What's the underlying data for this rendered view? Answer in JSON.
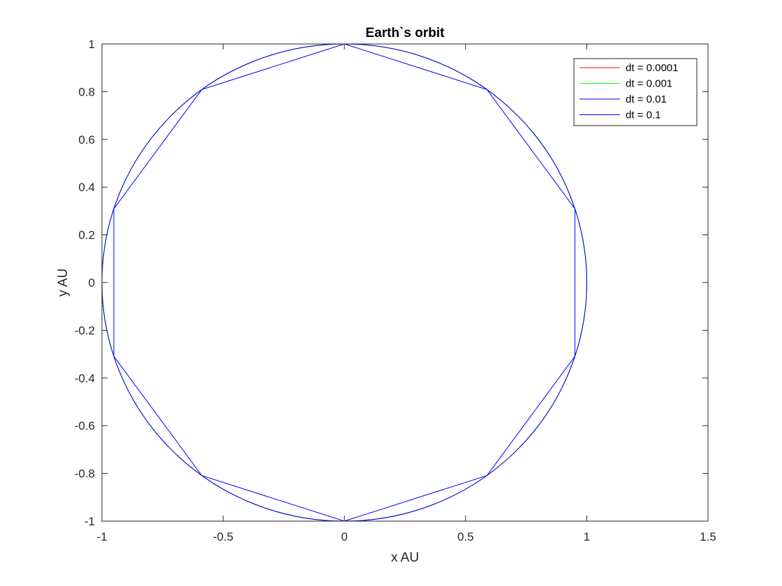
{
  "chart_data": {
    "type": "line",
    "title": "Earth`s orbit",
    "xlabel": "x AU",
    "ylabel": "y AU",
    "xlim": [
      -1,
      1.5
    ],
    "ylim": [
      -1,
      1
    ],
    "xticks": [
      -1,
      -0.5,
      0,
      0.5,
      1,
      1.5
    ],
    "xtick_labels": [
      "-1",
      "-0.5",
      "0",
      "0.5",
      "1",
      "1.5"
    ],
    "yticks": [
      -1,
      -0.8,
      -0.6,
      -0.4,
      -0.2,
      0,
      0.2,
      0.4,
      0.6,
      0.8,
      1
    ],
    "ytick_labels": [
      "-1",
      "-0.8",
      "-0.6",
      "-0.4",
      "-0.2",
      "0",
      "0.2",
      "0.4",
      "0.6",
      "0.8",
      "1"
    ],
    "grid": false,
    "legend_position": "top-right",
    "series": [
      {
        "name": "dt = 0.0001",
        "color": "#ff0000",
        "kind": "circle",
        "center": [
          0,
          0
        ],
        "radius": 1
      },
      {
        "name": "dt = 0.001",
        "color": "#00ff00",
        "kind": "circle",
        "center": [
          0,
          0
        ],
        "radius": 1
      },
      {
        "name": "dt = 0.01",
        "color": "#0000ff",
        "kind": "circle",
        "center": [
          0,
          0
        ],
        "radius": 1
      },
      {
        "name": "dt = 0.1",
        "color": "#0000ff",
        "kind": "polyline",
        "x": [
          0,
          0.588,
          0.951,
          0.951,
          0.588,
          0,
          -0.588,
          -0.951,
          -0.951,
          -0.588,
          0
        ],
        "y": [
          1,
          0.809,
          0.309,
          -0.309,
          -0.809,
          -1,
          -0.809,
          -0.309,
          0.309,
          0.809,
          1
        ]
      }
    ]
  }
}
